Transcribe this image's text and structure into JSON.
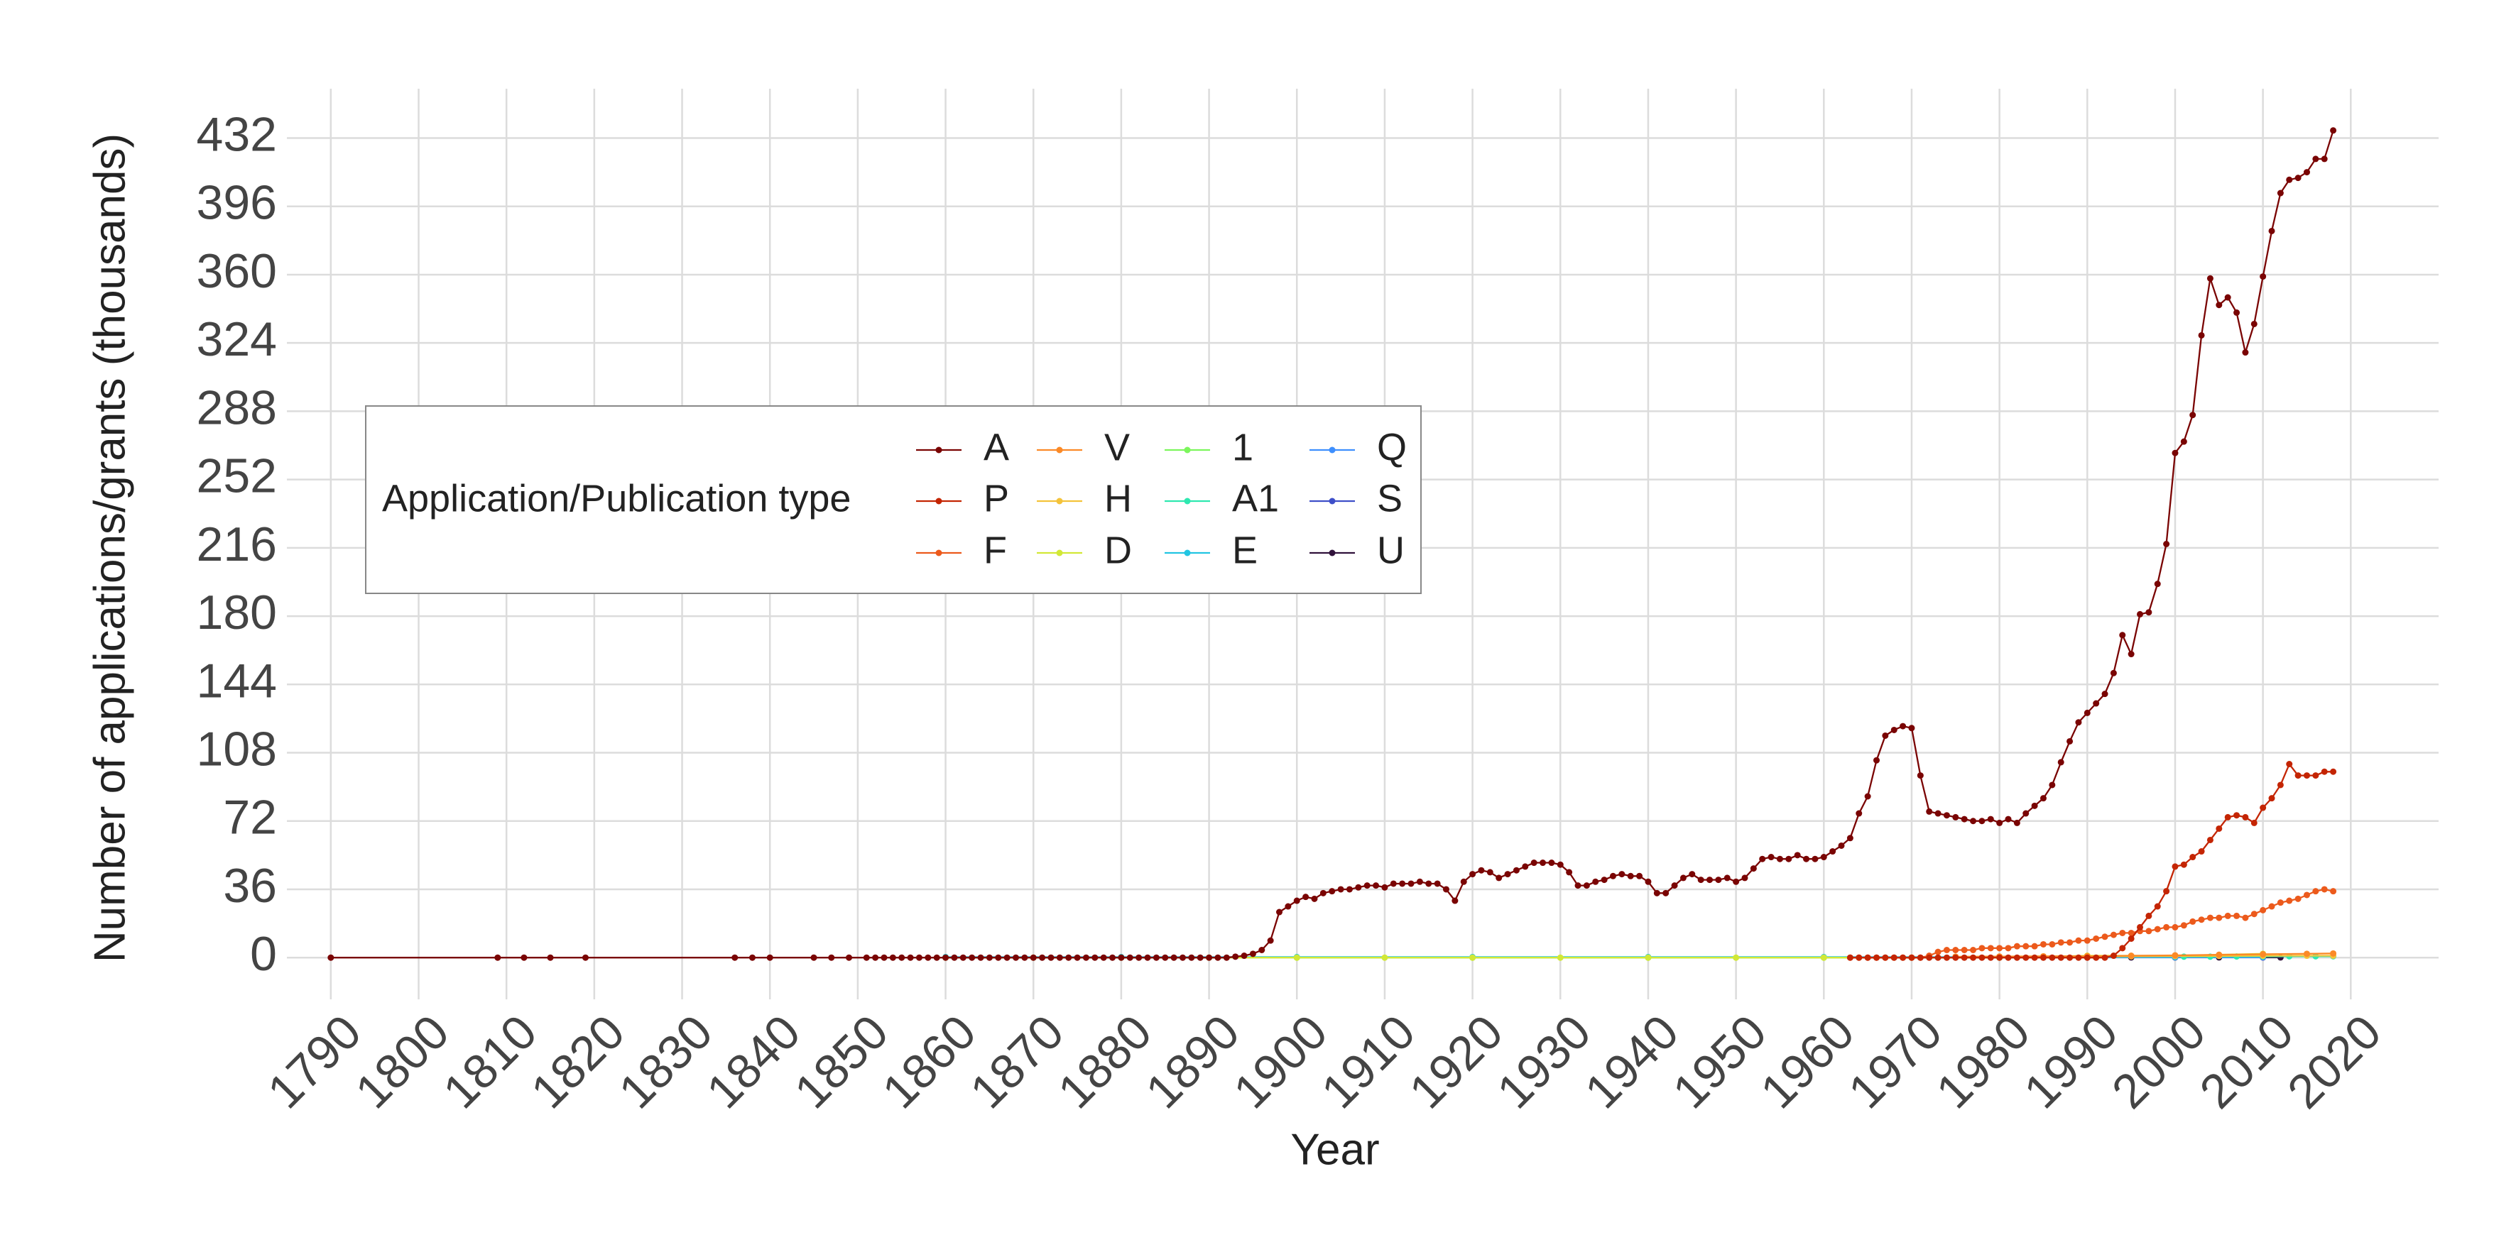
{
  "chart_data": {
    "type": "line",
    "x_label": "Year",
    "y_label": "Number of applications/grants (thousands)",
    "legend_title": "Application/Publication type",
    "legend_position": "upper left",
    "grid": true,
    "xlim": [
      1785,
      2030
    ],
    "xticks": [
      1790,
      1800,
      1810,
      1820,
      1830,
      1840,
      1850,
      1860,
      1870,
      1880,
      1890,
      1900,
      1910,
      1920,
      1930,
      1940,
      1950,
      1960,
      1970,
      1980,
      1990,
      2000,
      2010,
      2020
    ],
    "ylim": [
      -22,
      458
    ],
    "yticks": [
      0,
      36,
      72,
      108,
      144,
      180,
      216,
      252,
      288,
      324,
      360,
      396,
      432
    ],
    "series": [
      {
        "name": "A",
        "color": "#7a0403",
        "x": [
          1790,
          1809,
          1812,
          1815,
          1819,
          1836,
          1838,
          1840,
          1845,
          1847,
          1849,
          1851,
          1852,
          1853,
          1854,
          1855,
          1856,
          1857,
          1858,
          1859,
          1860,
          1861,
          1862,
          1863,
          1864,
          1865,
          1866,
          1867,
          1868,
          1869,
          1870,
          1871,
          1872,
          1873,
          1874,
          1875,
          1876,
          1877,
          1878,
          1879,
          1880,
          1881,
          1882,
          1883,
          1884,
          1885,
          1886,
          1887,
          1888,
          1889,
          1890,
          1891,
          1892,
          1893,
          1894,
          1895,
          1896,
          1897,
          1898,
          1899,
          1900,
          1901,
          1902,
          1903,
          1904,
          1905,
          1906,
          1907,
          1908,
          1909,
          1910,
          1911,
          1912,
          1913,
          1914,
          1915,
          1916,
          1917,
          1918,
          1919,
          1920,
          1921,
          1922,
          1923,
          1924,
          1925,
          1926,
          1927,
          1928,
          1929,
          1930,
          1931,
          1932,
          1933,
          1934,
          1935,
          1936,
          1937,
          1938,
          1939,
          1940,
          1941,
          1942,
          1943,
          1944,
          1945,
          1946,
          1947,
          1948,
          1949,
          1950,
          1951,
          1952,
          1953,
          1954,
          1955,
          1956,
          1957,
          1958,
          1959,
          1960,
          1961,
          1962,
          1963,
          1964,
          1965,
          1966,
          1967,
          1968,
          1969,
          1970,
          1971,
          1972,
          1973,
          1974,
          1975,
          1976,
          1977,
          1978,
          1979,
          1980,
          1981,
          1982,
          1983,
          1984,
          1985,
          1986,
          1987,
          1988,
          1989,
          1990,
          1991,
          1992,
          1993,
          1994,
          1995,
          1996,
          1997,
          1998,
          1999,
          2000,
          2001,
          2002,
          2003,
          2004,
          2005,
          2006,
          2007,
          2008,
          2009,
          2010,
          2011,
          2012,
          2013,
          2014,
          2015,
          2016,
          2017,
          2018
        ],
        "values": [
          0,
          0,
          0,
          0,
          0,
          0,
          0,
          0,
          0,
          0,
          0,
          0,
          0,
          0,
          0,
          0,
          0,
          0,
          0,
          0,
          0,
          0,
          0,
          0,
          0,
          0,
          0,
          0,
          0,
          0,
          0,
          0,
          0,
          0,
          0,
          0,
          0,
          0,
          0,
          0,
          0,
          0,
          0,
          0,
          0,
          0,
          0,
          0,
          0,
          0,
          0,
          0,
          0,
          0.5,
          1,
          2,
          4,
          9,
          24,
          27,
          30,
          32,
          31,
          34,
          35,
          36,
          36,
          37,
          38,
          38,
          37,
          39,
          39,
          39,
          40,
          39,
          39,
          36,
          30,
          40,
          44,
          46,
          45,
          42,
          44,
          46,
          48,
          50,
          50,
          50,
          49,
          45,
          38,
          38,
          40,
          41,
          43,
          44,
          43,
          43,
          40,
          34,
          34,
          38,
          42,
          44,
          41,
          41,
          41,
          42,
          40,
          42,
          47,
          52,
          53,
          52,
          52,
          54,
          52,
          52,
          53,
          56,
          59,
          63,
          76,
          85,
          104,
          117,
          120,
          122,
          121,
          96,
          77,
          76,
          75,
          74,
          73,
          72,
          72,
          73,
          71,
          73,
          71,
          76,
          80,
          84,
          91,
          103,
          114,
          124,
          129,
          134,
          139,
          150,
          170,
          160,
          181,
          182,
          197,
          218,
          266,
          272,
          286,
          328,
          358,
          344,
          348,
          340,
          319,
          334,
          359,
          383,
          403,
          410,
          411,
          414,
          421,
          421,
          436
        ]
      },
      {
        "name": "P",
        "color": "#c42503",
        "x": [
          1963,
          1964,
          1965,
          1966,
          1967,
          1968,
          1969,
          1970,
          1971,
          1972,
          1973,
          1974,
          1975,
          1976,
          1977,
          1978,
          1979,
          1980,
          1981,
          1982,
          1983,
          1984,
          1985,
          1986,
          1987,
          1988,
          1989,
          1990,
          1991,
          1992,
          1993,
          1994,
          1995,
          1996,
          1997,
          1998,
          1999,
          2000,
          2001,
          2002,
          2003,
          2004,
          2005,
          2006,
          2007,
          2008,
          2009,
          2010,
          2011,
          2012,
          2013,
          2014,
          2015,
          2016,
          2017,
          2018
        ],
        "values": [
          0,
          0,
          0,
          0,
          0,
          0,
          0,
          0,
          0,
          0,
          0,
          0,
          0,
          0,
          0,
          0,
          0,
          0,
          0,
          0,
          0,
          0,
          0,
          0,
          0,
          0,
          0,
          0,
          0,
          0,
          1,
          5,
          10,
          16,
          22,
          27,
          35,
          48,
          49,
          53,
          56,
          62,
          68,
          74,
          75,
          74,
          71,
          79,
          84,
          91,
          102,
          96,
          96,
          96,
          98,
          98
        ]
      },
      {
        "name": "F",
        "color": "#ec5a1c",
        "x": [
          1963,
          1964,
          1965,
          1966,
          1967,
          1968,
          1969,
          1970,
          1971,
          1972,
          1973,
          1974,
          1975,
          1976,
          1977,
          1978,
          1979,
          1980,
          1981,
          1982,
          1983,
          1984,
          1985,
          1986,
          1987,
          1988,
          1989,
          1990,
          1991,
          1992,
          1993,
          1994,
          1995,
          1996,
          1997,
          1998,
          1999,
          2000,
          2001,
          2002,
          2003,
          2004,
          2005,
          2006,
          2007,
          2008,
          2009,
          2010,
          2011,
          2012,
          2013,
          2014,
          2015,
          2016,
          2017,
          2018
        ],
        "values": [
          0,
          0,
          0,
          0,
          0,
          0,
          0,
          0,
          0,
          1,
          3,
          4,
          4,
          4,
          4,
          5,
          5,
          5,
          5,
          6,
          6,
          6,
          7,
          7,
          8,
          8,
          9,
          9,
          10,
          11,
          12,
          13,
          13,
          14,
          14,
          15,
          16,
          16,
          17,
          19,
          20,
          21,
          21,
          22,
          22,
          21,
          23,
          25,
          27,
          29,
          30,
          31,
          33,
          35,
          36,
          35
        ]
      },
      {
        "name": "V",
        "color": "#fb8a27",
        "x": [
          1975,
          1980,
          1985,
          1990,
          1995,
          2000,
          2005,
          2010,
          2015,
          2018
        ],
        "values": [
          0.5,
          0.6,
          0.7,
          0.8,
          1,
          1.2,
          1.5,
          1.8,
          2,
          2.2
        ]
      },
      {
        "name": "H",
        "color": "#f4c33a",
        "x": [
          1985,
          1990,
          1995,
          2000,
          2005,
          2010,
          2015,
          2018
        ],
        "values": [
          0.5,
          0.6,
          0.7,
          0.8,
          0.9,
          1,
          1,
          1
        ]
      },
      {
        "name": "D",
        "color": "#d2e836",
        "x": [
          1860,
          1870,
          1880,
          1890,
          1900,
          1910,
          1920,
          1930,
          1940,
          1950,
          1960,
          1970,
          1980,
          1990,
          2000,
          2010
        ],
        "values": [
          0,
          0,
          0,
          0,
          0,
          0,
          0,
          0,
          0,
          0,
          0,
          0,
          0,
          1,
          1,
          2
        ]
      },
      {
        "name": "1",
        "color": "#7cf65c",
        "x": [
          1900,
          1920,
          1940,
          1960,
          1980
        ],
        "values": [
          0,
          0,
          0,
          0,
          0
        ]
      },
      {
        "name": "A1",
        "color": "#2ee8b0",
        "x": [
          2001,
          2004,
          2007,
          2010,
          2013,
          2016,
          2018
        ],
        "values": [
          0.5,
          0.5,
          0.6,
          0.6,
          0.7,
          0.7,
          0.7
        ]
      },
      {
        "name": "E",
        "color": "#22c5e2",
        "x": [
          1860,
          1880,
          1900,
          1920,
          1940,
          1960,
          1980,
          2000
        ],
        "values": [
          0.3,
          0.3,
          0.3,
          0.3,
          0.3,
          0.3,
          0.3,
          0.3
        ]
      },
      {
        "name": "Q",
        "color": "#3e8ffe",
        "x": [
          1980,
          1990,
          2000,
          2010
        ],
        "values": [
          0.2,
          0.2,
          0.2,
          0.2
        ]
      },
      {
        "name": "S",
        "color": "#3e4fc9",
        "x": [
          1990,
          2000,
          2010
        ],
        "values": [
          0.1,
          0.1,
          0.1
        ]
      },
      {
        "name": "U",
        "color": "#30123b",
        "x": [
          1995,
          2000,
          2005,
          2010,
          2012
        ],
        "values": [
          0.1,
          0.1,
          0.1,
          0.1,
          0.1
        ]
      }
    ]
  }
}
